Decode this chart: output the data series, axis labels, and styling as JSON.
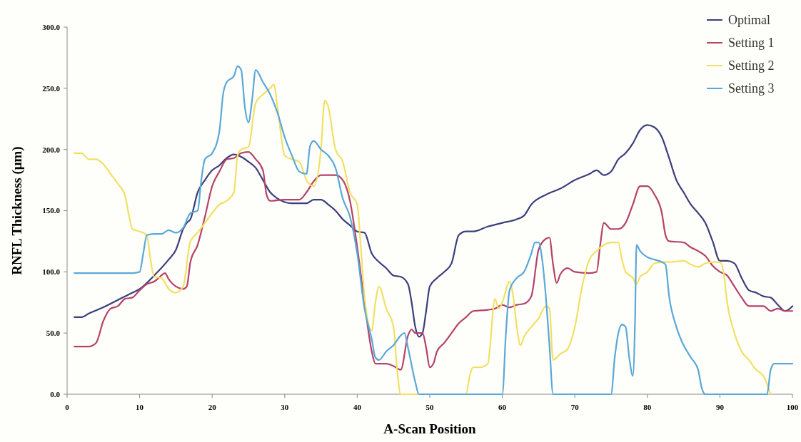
{
  "chart_data": {
    "type": "line",
    "xlabel": "A-Scan Position",
    "ylabel": "RNFL Thickness (μm)",
    "xlim": [
      0,
      100
    ],
    "ylim": [
      0,
      300
    ],
    "xticks": [
      0,
      10,
      20,
      30,
      40,
      50,
      60,
      70,
      80,
      90,
      100
    ],
    "yticks": [
      {
        "value": 0,
        "label": "0.0"
      },
      {
        "value": 50,
        "label": "50.0"
      },
      {
        "value": 100,
        "label": "100.0"
      },
      {
        "value": 150,
        "label": "150.0"
      },
      {
        "value": 200,
        "label": "200.0"
      },
      {
        "value": 250,
        "label": "250.0"
      },
      {
        "value": 300,
        "label": "300.0"
      }
    ],
    "grid": false,
    "legend": "top right",
    "marker": "none",
    "line_style": "solid",
    "series": [
      {
        "name": "Optimal",
        "color": "#3b3f7a",
        "x": [
          1,
          2,
          3,
          5,
          7,
          8,
          9,
          10,
          12,
          14,
          15,
          16,
          16.5,
          17,
          18,
          19,
          20,
          21,
          22,
          23,
          24,
          25,
          26,
          27,
          28,
          29,
          30,
          31,
          32,
          33,
          34,
          35,
          36,
          37,
          38,
          39,
          40,
          41,
          42,
          43,
          44,
          45,
          46,
          47,
          47.5,
          48,
          48.5,
          49,
          49.5,
          50,
          51,
          52,
          53,
          54,
          55,
          56,
          58,
          60,
          62,
          63,
          64,
          66,
          68,
          70,
          72,
          73,
          74,
          75,
          76,
          77,
          78,
          79,
          80,
          81,
          82,
          83,
          84,
          85,
          86,
          87,
          88,
          89,
          90,
          91,
          92,
          93,
          94,
          95,
          96,
          97,
          98,
          99,
          100
        ],
        "values": [
          63,
          63,
          66,
          71,
          77,
          80,
          83,
          86,
          97,
          110,
          118,
          135,
          140,
          143,
          165,
          175,
          183,
          187,
          193,
          196,
          194,
          190,
          185,
          175,
          165,
          160,
          157,
          156,
          156,
          156,
          159,
          159,
          155,
          150,
          143,
          138,
          133,
          132,
          115,
          108,
          103,
          97,
          96,
          90,
          75,
          55,
          47,
          50,
          68,
          88,
          95,
          100,
          107,
          130,
          133,
          133,
          137,
          140,
          143,
          146,
          155,
          163,
          168,
          175,
          180,
          183,
          179,
          182,
          192,
          197,
          205,
          216,
          220,
          218,
          210,
          193,
          175,
          165,
          155,
          148,
          140,
          125,
          109,
          109,
          107,
          95,
          85,
          83,
          80,
          79,
          73,
          68,
          72
        ]
      },
      {
        "name": "Setting 1",
        "color": "#b4426a",
        "x": [
          1,
          3,
          4,
          5,
          6,
          7,
          8,
          9,
          10,
          11,
          12,
          13,
          13.5,
          14,
          15,
          16,
          16.5,
          17,
          18,
          19,
          20,
          21,
          22,
          23,
          24,
          25,
          26,
          27,
          27.5,
          28,
          30,
          32,
          33,
          34,
          35,
          37,
          38,
          39,
          40,
          41,
          42,
          42.5,
          44,
          45,
          46,
          47,
          47.5,
          48,
          49,
          49.5,
          50,
          50.5,
          51,
          52,
          53,
          54,
          55,
          56,
          58,
          59,
          60,
          61,
          62,
          63,
          64,
          65,
          66,
          66.5,
          67,
          67.5,
          68,
          69,
          70,
          72,
          73,
          73.5,
          74,
          75,
          76,
          77,
          78,
          79,
          80,
          81,
          82,
          82.5,
          83,
          85,
          86,
          87,
          88,
          89,
          90,
          91,
          92,
          93,
          94,
          96,
          97,
          98,
          99,
          100
        ],
        "values": [
          39,
          39,
          42,
          60,
          70,
          72,
          78,
          79,
          85,
          90,
          92,
          97,
          99,
          94,
          88,
          86,
          88,
          108,
          122,
          145,
          170,
          182,
          192,
          193,
          197,
          198,
          192,
          183,
          163,
          158,
          159,
          159,
          165,
          174,
          179,
          179,
          175,
          158,
          120,
          75,
          35,
          25,
          25,
          23,
          20,
          48,
          53,
          50,
          50,
          38,
          22,
          25,
          35,
          42,
          50,
          58,
          63,
          68,
          69,
          70,
          73,
          71,
          73,
          74,
          80,
          118,
          127,
          128,
          106,
          91,
          98,
          103,
          100,
          99,
          100,
          122,
          140,
          135,
          135,
          140,
          155,
          170,
          170,
          163,
          148,
          130,
          125,
          124,
          120,
          117,
          113,
          105,
          100,
          97,
          88,
          79,
          72,
          72,
          68,
          70,
          68,
          68
        ]
      },
      {
        "name": "Setting 2",
        "color": "#f2e064",
        "x": [
          1,
          2,
          3,
          4,
          5,
          6,
          7,
          8,
          8.5,
          9,
          10,
          11,
          11.5,
          12,
          13,
          14,
          15,
          16,
          17,
          18,
          19,
          20,
          21,
          22,
          23,
          23.5,
          24,
          25,
          26,
          27,
          28,
          28.5,
          29,
          30,
          31,
          32,
          33,
          34,
          35,
          35.5,
          36,
          37,
          38,
          39,
          40,
          40.5,
          41,
          42,
          42.5,
          43,
          44,
          45,
          45.5,
          46,
          47,
          55,
          55.5,
          56,
          57,
          58,
          59,
          59.5,
          60,
          61,
          61.5,
          62,
          62.5,
          63,
          64,
          65,
          66,
          66.5,
          67,
          68,
          69,
          70,
          71,
          72,
          73,
          74,
          75,
          76,
          76.5,
          77,
          78,
          78.5,
          79,
          80,
          81,
          82,
          83,
          85,
          86,
          87,
          88,
          89,
          90,
          90.5,
          91,
          92,
          93,
          94,
          95,
          96,
          97
        ],
        "values": [
          197,
          197,
          192,
          192,
          188,
          180,
          172,
          162,
          147,
          135,
          133,
          130,
          110,
          96,
          95,
          86,
          83,
          88,
          125,
          132,
          140,
          148,
          155,
          158,
          165,
          195,
          200,
          202,
          238,
          245,
          250,
          253,
          235,
          195,
          192,
          190,
          175,
          170,
          200,
          240,
          235,
          200,
          190,
          165,
          155,
          120,
          80,
          52,
          75,
          88,
          70,
          55,
          20,
          0,
          0,
          0,
          15,
          22,
          22,
          25,
          78,
          70,
          75,
          92,
          80,
          55,
          40,
          47,
          55,
          62,
          72,
          70,
          28,
          33,
          37,
          55,
          88,
          110,
          117,
          122,
          124,
          124,
          110,
          100,
          95,
          90,
          96,
          100,
          107,
          108,
          108,
          109,
          106,
          104,
          107,
          108,
          108,
          100,
          75,
          50,
          35,
          28,
          20,
          15,
          0
        ]
      },
      {
        "name": "Setting 3",
        "color": "#5aa8d8",
        "x": [
          1,
          5,
          9,
          10,
          10.5,
          11,
          12,
          13,
          14,
          15,
          16,
          17,
          18,
          18.5,
          19,
          20,
          21,
          21.5,
          22,
          23,
          23.5,
          24,
          24.5,
          25,
          25.5,
          26,
          27,
          28,
          29,
          30,
          31,
          32,
          33,
          33.5,
          34,
          35,
          36,
          37,
          38,
          39,
          40,
          41,
          42,
          42.5,
          43,
          44,
          45,
          46,
          46.5,
          47,
          48,
          48.5,
          60,
          60.5,
          61,
          62,
          63,
          64,
          64.5,
          65,
          65.5,
          66,
          66.5,
          67,
          75,
          75.5,
          76,
          76.5,
          77,
          77.5,
          78,
          78.3,
          78.5,
          79,
          80,
          81,
          82,
          82.5,
          83,
          84,
          85,
          86,
          87,
          87.5,
          88,
          96.5,
          97,
          97.5,
          100
        ],
        "values": [
          99,
          99,
          99,
          100,
          115,
          130,
          131,
          131,
          134,
          132,
          136,
          148,
          150,
          175,
          192,
          197,
          215,
          245,
          255,
          260,
          268,
          265,
          235,
          222,
          240,
          265,
          255,
          245,
          230,
          210,
          195,
          182,
          180,
          203,
          207,
          200,
          195,
          185,
          160,
          145,
          115,
          70,
          45,
          30,
          28,
          35,
          40,
          48,
          50,
          38,
          10,
          0,
          0,
          50,
          85,
          95,
          100,
          115,
          124,
          124,
          110,
          80,
          40,
          0,
          0,
          30,
          50,
          57,
          55,
          30,
          15,
          60,
          122,
          117,
          112,
          110,
          108,
          106,
          80,
          55,
          40,
          30,
          20,
          5,
          0,
          0,
          20,
          25,
          25
        ]
      }
    ]
  }
}
